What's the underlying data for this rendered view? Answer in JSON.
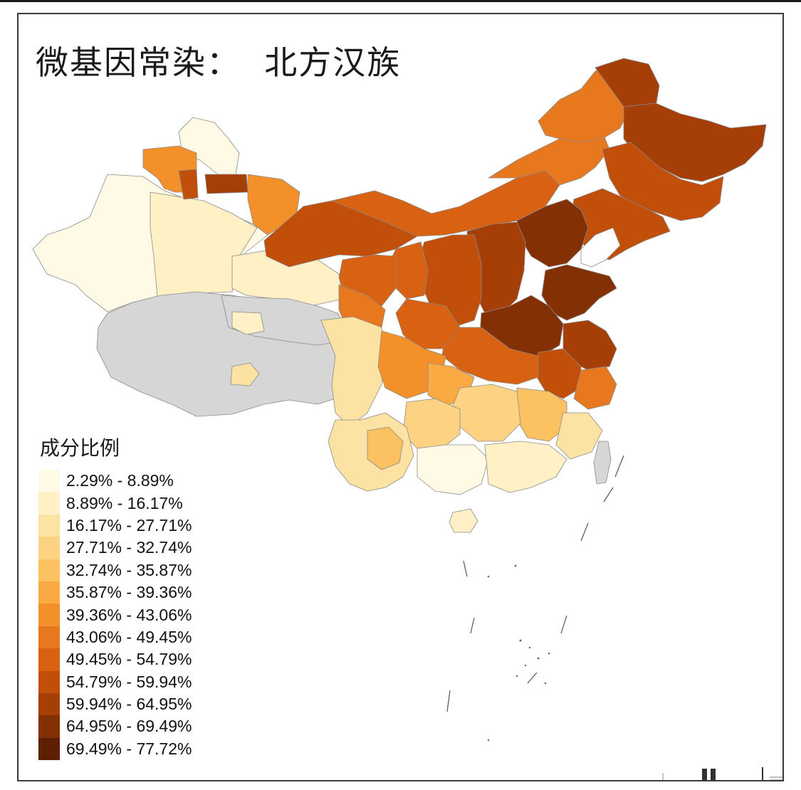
{
  "map": {
    "title": "微基因常染：  北方汉族",
    "legend": {
      "title": "成分比例",
      "classes": [
        {
          "label": "2.29% - 8.89%",
          "color": "#fffae6"
        },
        {
          "label": "8.89% - 16.17%",
          "color": "#fff0c6"
        },
        {
          "label": "16.17% - 27.71%",
          "color": "#fde3a3"
        },
        {
          "label": "27.71% - 32.74%",
          "color": "#fdd383"
        },
        {
          "label": "32.74% - 35.87%",
          "color": "#fcc161"
        },
        {
          "label": "35.87% - 39.36%",
          "color": "#f9aa42"
        },
        {
          "label": "39.36% - 43.06%",
          "color": "#f4902a"
        },
        {
          "label": "43.06% - 49.45%",
          "color": "#e8781d"
        },
        {
          "label": "49.45% - 54.79%",
          "color": "#d86112"
        },
        {
          "label": "54.79% - 59.94%",
          "color": "#c14f0a"
        },
        {
          "label": "59.94% - 64.95%",
          "color": "#a53e07"
        },
        {
          "label": "64.95% - 69.49%",
          "color": "#843005"
        },
        {
          "label": "69.49% - 77.72%",
          "color": "#5e2003"
        }
      ]
    },
    "no_data_color": "#d6d6d6"
  }
}
